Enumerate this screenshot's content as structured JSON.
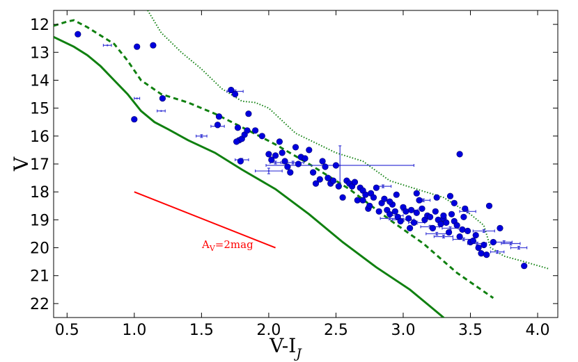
{
  "chart_data": {
    "type": "scatter",
    "title": "",
    "xlabel": "V-I",
    "xlabel_sub": "J",
    "ylabel": "V",
    "xlim": [
      0.4,
      4.15
    ],
    "ylim": [
      22.5,
      11.5
    ],
    "y_inverted": true,
    "x_ticks": [
      0.5,
      1.0,
      1.5,
      2.0,
      2.5,
      3.0,
      3.5,
      4.0
    ],
    "x_tick_labels": [
      "0.5",
      "1.0",
      "1.5",
      "2.0",
      "2.5",
      "3.0",
      "3.5",
      "4.0"
    ],
    "y_ticks": [
      12,
      13,
      14,
      15,
      16,
      17,
      18,
      19,
      20,
      21,
      22
    ],
    "y_tick_labels": [
      "12",
      "13",
      "14",
      "15",
      "16",
      "17",
      "18",
      "19",
      "20",
      "21",
      "22"
    ],
    "grid": false,
    "colors": {
      "points": "#0000dd",
      "errorbars": "#3a3ad6",
      "isochrones": "#108010",
      "reddening": "#ff0000"
    },
    "annotation": {
      "label": "A",
      "label_sub": "V",
      "label_rest": "=2mag"
    },
    "reddening_vector": {
      "x": [
        1.0,
        2.05
      ],
      "y": [
        18.0,
        20.0
      ]
    },
    "isochrones": [
      {
        "style": "solid",
        "x": [
          0.4,
          0.55,
          0.65,
          0.75,
          0.85,
          0.95,
          1.05,
          1.15,
          1.25,
          1.4,
          1.6,
          1.8,
          2.05,
          2.3,
          2.55,
          2.8,
          3.05,
          3.2,
          3.35
        ],
        "y": [
          12.45,
          12.8,
          13.1,
          13.5,
          14.0,
          14.5,
          15.1,
          15.5,
          15.75,
          16.15,
          16.6,
          17.2,
          17.9,
          18.8,
          19.8,
          20.7,
          21.5,
          22.1,
          22.7
        ]
      },
      {
        "style": "dashed",
        "x": [
          0.4,
          0.5,
          0.55,
          0.65,
          0.75,
          0.85,
          0.95,
          1.05,
          1.2,
          1.4,
          1.6,
          1.85,
          2.05,
          2.3,
          2.6,
          2.9,
          3.15,
          3.4,
          3.67
        ],
        "y": [
          12.05,
          11.9,
          11.85,
          12.1,
          12.4,
          12.7,
          13.3,
          14.0,
          14.5,
          14.8,
          15.2,
          15.8,
          16.3,
          17.0,
          17.9,
          19.0,
          19.85,
          20.9,
          21.8
        ]
      },
      {
        "style": "dotted",
        "x": [
          1.1,
          1.2,
          1.35,
          1.5,
          1.65,
          1.8,
          1.9,
          2.0,
          2.2,
          2.5,
          2.7,
          2.9,
          3.1,
          3.3,
          3.5,
          3.6,
          3.65,
          3.75,
          3.9,
          4.08
        ],
        "y": [
          11.5,
          12.3,
          13.0,
          13.6,
          14.3,
          14.75,
          14.8,
          15.0,
          15.9,
          16.6,
          16.9,
          17.6,
          17.9,
          18.2,
          18.8,
          19.2,
          20.0,
          20.3,
          20.5,
          20.75
        ]
      }
    ],
    "series": [
      {
        "marker": "circle",
        "x": [
          0.58,
          1.02,
          1.14,
          1.21,
          1.0,
          1.62,
          1.63,
          1.72,
          1.75,
          1.77,
          1.78,
          1.8,
          1.82,
          1.84,
          1.76,
          1.79,
          1.85,
          1.9,
          1.95,
          2.0,
          2.02,
          2.05,
          2.08,
          2.1,
          2.12,
          2.14,
          2.16,
          2.2,
          2.22,
          2.24,
          2.27,
          2.3,
          2.33,
          2.35,
          2.38,
          2.4,
          2.42,
          2.44,
          2.46,
          2.48,
          2.5,
          2.52,
          2.55,
          2.58,
          2.6,
          2.62,
          2.64,
          2.66,
          2.68,
          2.7,
          2.72,
          2.74,
          2.76,
          2.78,
          2.8,
          2.82,
          2.84,
          2.86,
          2.88,
          2.9,
          2.92,
          2.94,
          2.96,
          2.98,
          3.0,
          3.02,
          3.04,
          3.06,
          3.08,
          3.1,
          3.12,
          3.14,
          3.16,
          3.18,
          3.2,
          3.22,
          3.24,
          3.26,
          3.28,
          3.3,
          3.32,
          3.34,
          3.36,
          3.38,
          3.4,
          3.42,
          3.44,
          3.46,
          3.48,
          3.5,
          3.52,
          3.54,
          3.56,
          3.58,
          3.6,
          3.62,
          3.64,
          3.67,
          3.72,
          3.42,
          3.35,
          3.38,
          3.9,
          2.7,
          2.9,
          3.1,
          3.3,
          2.95,
          3.05,
          2.75,
          3.25,
          3.45
        ],
        "y": [
          12.35,
          12.8,
          12.75,
          14.65,
          15.4,
          15.6,
          15.3,
          14.35,
          14.5,
          15.7,
          16.15,
          16.1,
          15.95,
          15.8,
          16.2,
          16.9,
          15.2,
          15.8,
          16.0,
          16.65,
          16.85,
          16.7,
          16.2,
          16.6,
          16.9,
          17.1,
          17.3,
          16.4,
          17.0,
          16.75,
          16.8,
          16.5,
          17.3,
          17.7,
          17.55,
          16.9,
          17.1,
          17.5,
          17.7,
          17.6,
          17.05,
          17.8,
          18.2,
          17.6,
          17.7,
          17.8,
          17.65,
          18.3,
          17.85,
          17.95,
          18.1,
          18.6,
          18.05,
          18.2,
          17.85,
          18.7,
          18.4,
          18.25,
          18.65,
          18.8,
          18.45,
          18.7,
          18.9,
          19.05,
          18.55,
          18.7,
          18.95,
          18.65,
          19.1,
          18.75,
          18.3,
          18.6,
          19.0,
          18.85,
          18.9,
          19.3,
          18.7,
          19.0,
          19.15,
          18.95,
          19.1,
          19.45,
          18.8,
          19.05,
          19.2,
          19.6,
          19.35,
          18.6,
          19.4,
          19.8,
          19.75,
          19.55,
          20.0,
          20.2,
          19.9,
          20.25,
          18.5,
          19.8,
          19.3,
          16.65,
          18.15,
          18.4,
          20.65,
          18.3,
          18.35,
          18.05,
          18.85,
          18.1,
          19.3,
          18.5,
          18.2,
          18.9
        ]
      },
      {
        "marker": "errorbar",
        "x": [
          0.8,
          1.02,
          1.2,
          1.5,
          1.62,
          1.75,
          1.8,
          2.0,
          2.05,
          2.18,
          2.53,
          2.85,
          2.9,
          3.0,
          3.05,
          3.15,
          3.2,
          3.25,
          3.35,
          3.45,
          3.55,
          3.6,
          3.7,
          3.75,
          3.8,
          3.86,
          2.95,
          3.1,
          3.3,
          3.48
        ],
        "y": [
          12.75,
          14.65,
          15.1,
          16.0,
          15.65,
          14.4,
          16.85,
          17.25,
          16.95,
          16.95,
          17.05,
          17.8,
          18.95,
          19.0,
          18.65,
          18.3,
          19.25,
          19.5,
          19.3,
          19.7,
          19.85,
          19.4,
          20.15,
          19.8,
          19.85,
          20.0,
          18.85,
          19.1,
          19.6,
          18.7
        ],
        "xerr": [
          0.03,
          0.02,
          0.03,
          0.04,
          0.05,
          0.06,
          0.05,
          0.1,
          0.04,
          0.08,
          0.55,
          0.06,
          0.07,
          0.08,
          0.06,
          0.05,
          0.07,
          0.08,
          0.06,
          0.08,
          0.07,
          0.08,
          0.05,
          0.06,
          0.07,
          0.06,
          0.05,
          0.06,
          0.07,
          0.06
        ],
        "yerr": [
          0.0,
          0.0,
          0.0,
          0.05,
          0.05,
          0.05,
          0.05,
          0.1,
          0.05,
          0.05,
          0.7,
          0.05,
          0.05,
          0.05,
          0.05,
          0.05,
          0.05,
          0.05,
          0.05,
          0.05,
          0.05,
          0.05,
          0.05,
          0.05,
          0.05,
          0.05,
          0.05,
          0.05,
          0.05,
          0.05
        ]
      }
    ]
  }
}
